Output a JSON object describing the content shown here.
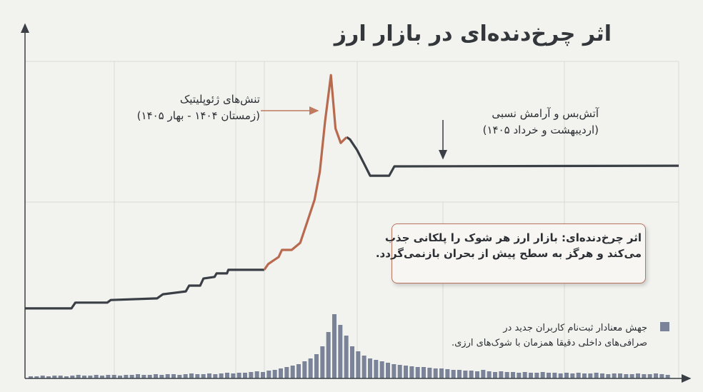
{
  "chart_data": [
    {
      "type": "line",
      "title": "اثر چرخ‌دنده‌ای در بازار ارز",
      "annotations": [
        "تنش‌های ژئوپلیتیک\n(زمستان ۱۴۰۴ - بهار ۱۴۰۵)",
        "آتش‌بس و آرامش نسبی\n(اردیبهشت و خرداد ۱۴۰۵)",
        "اثر چرخ‌دنده‌ای: بازار ارز هر شوک را پلکانی جذب\nمی‌کند و هرگز به سطح پیش از بحران بازنمی‌گردد."
      ],
      "x": [
        0,
        7.1,
        7.7,
        12.6,
        13.1,
        20.2,
        21.1,
        24.6,
        25.1,
        26.8,
        27.3,
        29,
        29.3,
        30.9,
        31.1,
        36.6,
        37.2,
        38.8,
        39.3,
        40.8,
        42.1,
        43.2,
        44.3,
        45.1,
        45.9,
        46.8,
        47.5,
        48.3,
        49.2,
        49.7,
        50.8,
        51.9,
        52.8,
        55.7,
        56.5,
        100
      ],
      "series": [
        {
          "color": "#3a3f45",
          "values": [
            21.8,
            21.8,
            23.6,
            23.6,
            24.4,
            24.9,
            26.2,
            27.1,
            28.9,
            28.9,
            31.1,
            31.6,
            32.7,
            32.7,
            33.8,
            33.8,
            null,
            null,
            null,
            null,
            null,
            null,
            null,
            null,
            null,
            null,
            null,
            null,
            75.1,
            74.4,
            71.1,
            66.7,
            63.1,
            63.1,
            66,
            66.2
          ]
        },
        {
          "color": "#b86a4f",
          "values": [
            null,
            null,
            null,
            null,
            null,
            null,
            null,
            null,
            null,
            null,
            null,
            null,
            null,
            null,
            null,
            33.8,
            35.6,
            37.8,
            40,
            40,
            42.2,
            48.9,
            55.6,
            64.4,
            80,
            94.4,
            77.8,
            73.3,
            75.1,
            null,
            null,
            null,
            null,
            null,
            null,
            null
          ]
        }
      ],
      "xlim": [
        0,
        100
      ],
      "ylim": [
        0,
        100
      ]
    },
    {
      "type": "bar",
      "series": [
        {
          "name": "جهش معنادار ثبت‌نام کاربران جدید در\nصرافی‌های داخلی دقیقا همزمان با شوک‌های ارزی.",
          "color": "#7a8398",
          "values": [
            3,
            3,
            4,
            3,
            4,
            4,
            3,
            4,
            5,
            4,
            4,
            5,
            4,
            5,
            5,
            4,
            5,
            5,
            6,
            5,
            5,
            6,
            5,
            6,
            6,
            5,
            6,
            7,
            6,
            6,
            7,
            6,
            7,
            8,
            7,
            8,
            8,
            9,
            10,
            9,
            11,
            12,
            14,
            16,
            18,
            20,
            24,
            28,
            34,
            45,
            65,
            90,
            75,
            60,
            45,
            38,
            32,
            28,
            26,
            24,
            22,
            20,
            19,
            18,
            17,
            16,
            16,
            15,
            14,
            14,
            13,
            12,
            12,
            11,
            11,
            10,
            12,
            10,
            9,
            10,
            9,
            9,
            8,
            9,
            8,
            8,
            9,
            8,
            8,
            7,
            8,
            7,
            8,
            7,
            7,
            8,
            7,
            6,
            7,
            7,
            6,
            6,
            7,
            6,
            6,
            7,
            6,
            5
          ]
        }
      ],
      "ylim": [
        0,
        100
      ]
    }
  ]
}
